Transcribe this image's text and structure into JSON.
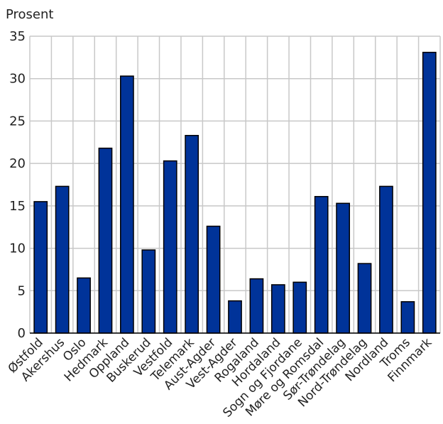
{
  "chart_data": {
    "type": "bar",
    "ylabel": "Prosent",
    "xlabel": "",
    "ylim": [
      0,
      35
    ],
    "yticks": [
      0,
      5,
      10,
      15,
      20,
      25,
      30,
      35
    ],
    "grid": true,
    "bar_color": "#003399",
    "categories": [
      "Østfold",
      "Akershus",
      "Oslo",
      "Hedmark",
      "Oppland",
      "Buskerud",
      "Vestfold",
      "Telemark",
      "Aust-Agder",
      "Vest-Agder",
      "Rogaland",
      "Hordaland",
      "Sogn og Fjordane",
      "Møre og Romsdal",
      "Sør-Trøndelag",
      "Nord-Trøndelag",
      "Nordland",
      "Troms",
      "Finnmark"
    ],
    "values": [
      15.5,
      17.3,
      6.5,
      21.8,
      30.3,
      9.8,
      20.3,
      23.3,
      12.6,
      3.8,
      6.4,
      5.7,
      6.0,
      16.1,
      15.3,
      8.2,
      17.3,
      3.7,
      33.1
    ]
  }
}
